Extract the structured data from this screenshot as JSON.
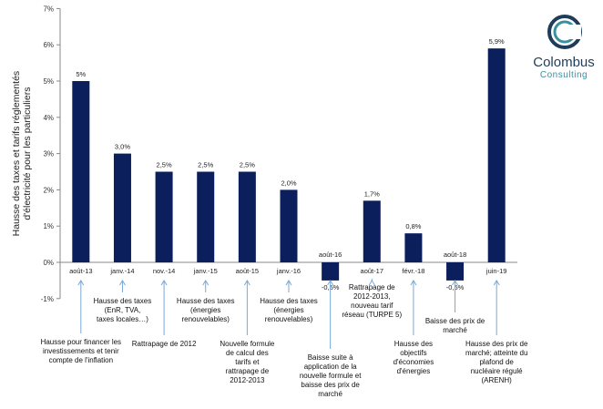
{
  "chart_data": {
    "type": "bar",
    "ylabel": "Hausse des taxes et tarifs réglementés d'électricité pour les particuliers",
    "ylim": [
      -1,
      7
    ],
    "yticks": [
      "-1%",
      "0%",
      "1%",
      "2%",
      "3%",
      "4%",
      "5%",
      "6%",
      "7%"
    ],
    "color": "#0b1f5c",
    "categories": [
      "août-13",
      "janv.-14",
      "nov.-14",
      "janv.-15",
      "août-15",
      "janv.-16",
      "août-16",
      "août-17",
      "févr.-18",
      "août-18",
      "juin-19"
    ],
    "values": [
      5.0,
      3.0,
      2.5,
      2.5,
      2.5,
      2.0,
      -0.5,
      1.7,
      0.8,
      -0.5,
      5.9
    ],
    "value_labels": [
      "5%",
      "3,0%",
      "2,5%",
      "2,5%",
      "2,5%",
      "2,0%",
      "-0,5%",
      "1,7%",
      "0,8%",
      "-0,5%",
      "5,9%"
    ],
    "annotations": [
      "Hausse pour financer les\ninvestissements et tenir\ncompte de l'inflation",
      "Hausse des taxes\n(EnR, TVA,\ntaxes locales…)",
      "Rattrapage de 2012",
      "Hausse des taxes\n(énergies\nrenouvelables)",
      "Nouvelle formule\nde calcul des\ntarifs et\nrattrapage de\n2012-2013",
      "Hausse des taxes\n(énergies\nrenouvelables)",
      "Baisse suite à\napplication de la\nnouvelle formule et\nbaisse des prix de\nmarché",
      "Rattrapage de\n2012-2013,\nnouveau tarif\nréseau (TURPE 5)",
      "Hausse des\nobjectifs\nd'économies\nd'énergies",
      "Baisse des prix de\nmarché",
      "Hausse des prix de\nmarché; atteinte du\nplafond de\nnucléaire régulé\n(ARENH)"
    ]
  },
  "logo": {
    "name": "Colombus",
    "sub": "Consulting"
  }
}
